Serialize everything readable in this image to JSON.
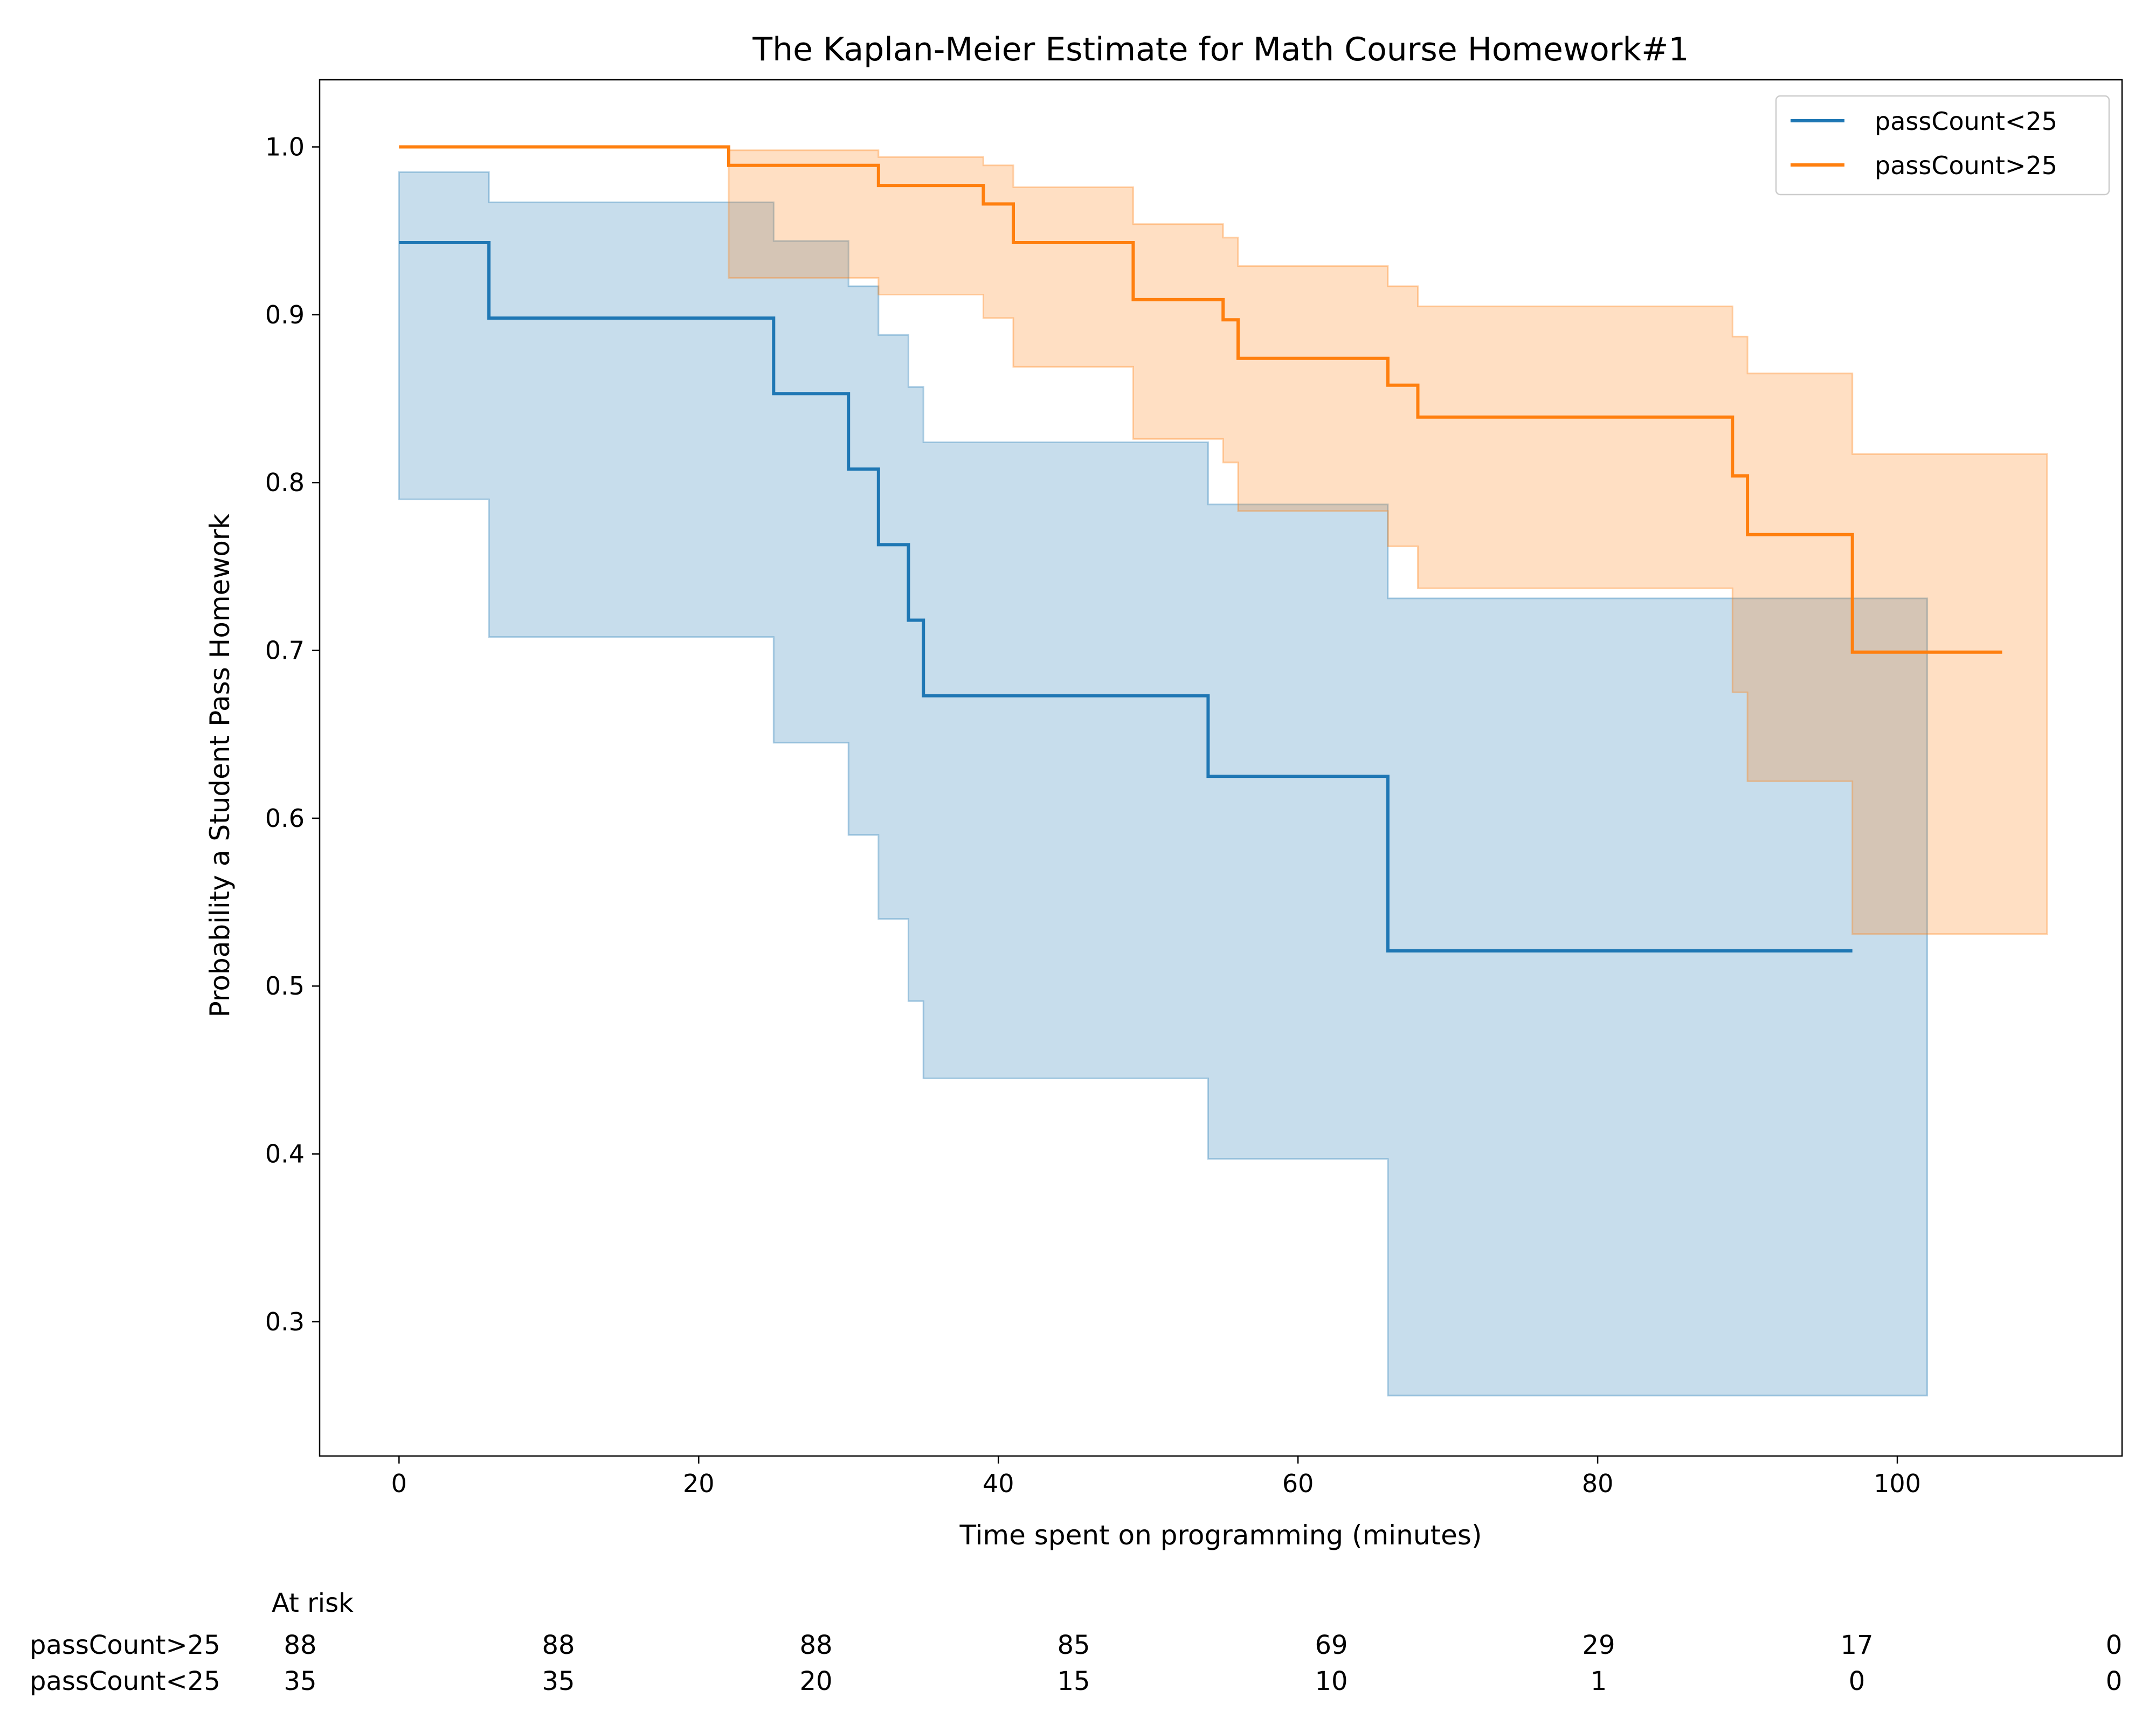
{
  "colors": {
    "lt25": "#1f77b4",
    "gt25": "#ff7f0e",
    "lt25_ci": "#1f77b4",
    "gt25_ci": "#ff7f0e"
  },
  "chart_data": {
    "type": "line",
    "subtype": "kaplan-meier step",
    "title": "The Kaplan-Meier Estimate for Math Course Homework#1",
    "xlabel": "Time spent on programming (minutes)",
    "ylabel": "Probability a Student Pass Homework",
    "xlim": [
      -5.3,
      115
    ],
    "ylim": [
      0.22,
      1.04
    ],
    "xticks": [
      0,
      20,
      40,
      60,
      80,
      100
    ],
    "yticks": [
      0.3,
      0.4,
      0.5,
      0.6,
      0.7,
      0.8,
      0.9,
      1.0
    ],
    "ytick_labels": [
      "0.3",
      "0.4",
      "0.5",
      "0.6",
      "0.7",
      "0.8",
      "0.9",
      "1.0"
    ],
    "grid": false,
    "legend": "top-right",
    "series": [
      {
        "name": "passCount<25",
        "color_key": "lt25",
        "x": [
          0,
          6,
          25,
          30,
          32,
          34,
          35,
          54,
          66,
          97
        ],
        "y": [
          0.943,
          0.898,
          0.853,
          0.808,
          0.763,
          0.718,
          0.673,
          0.625,
          0.521,
          0.521
        ],
        "ci_x": [
          0,
          6,
          25,
          30,
          32,
          34,
          35,
          54,
          66,
          102
        ],
        "ci_lower": [
          0.79,
          0.708,
          0.645,
          0.59,
          0.54,
          0.491,
          0.445,
          0.397,
          0.256,
          0.256
        ],
        "ci_upper": [
          0.985,
          0.967,
          0.944,
          0.917,
          0.888,
          0.857,
          0.824,
          0.787,
          0.731,
          0.731
        ]
      },
      {
        "name": "passCount>25",
        "color_key": "gt25",
        "x": [
          0,
          22,
          32,
          39,
          41,
          49,
          55,
          56,
          66,
          68,
          89,
          90,
          97,
          107
        ],
        "y": [
          1.0,
          0.989,
          0.977,
          0.966,
          0.943,
          0.909,
          0.897,
          0.874,
          0.858,
          0.839,
          0.804,
          0.769,
          0.699,
          0.699
        ],
        "ci_x": [
          22,
          32,
          39,
          41,
          49,
          55,
          56,
          66,
          68,
          89,
          90,
          97,
          110
        ],
        "ci_lower": [
          0.922,
          0.912,
          0.898,
          0.869,
          0.826,
          0.812,
          0.783,
          0.762,
          0.737,
          0.675,
          0.622,
          0.531,
          0.531
        ],
        "ci_upper": [
          0.998,
          0.994,
          0.989,
          0.976,
          0.954,
          0.946,
          0.929,
          0.917,
          0.905,
          0.887,
          0.865,
          0.817,
          0.817
        ]
      }
    ],
    "at_risk": {
      "header": "At risk",
      "times": [
        0,
        20,
        40,
        60,
        80,
        100,
        120,
        140
      ],
      "rows": [
        {
          "label": "passCount>25",
          "counts": [
            "88",
            "88",
            "88",
            "85",
            "69",
            "29",
            "17",
            "0"
          ]
        },
        {
          "label": "passCount<25",
          "counts": [
            "35",
            "35",
            "20",
            "15",
            "10",
            "1",
            "0",
            "0"
          ]
        }
      ]
    }
  }
}
